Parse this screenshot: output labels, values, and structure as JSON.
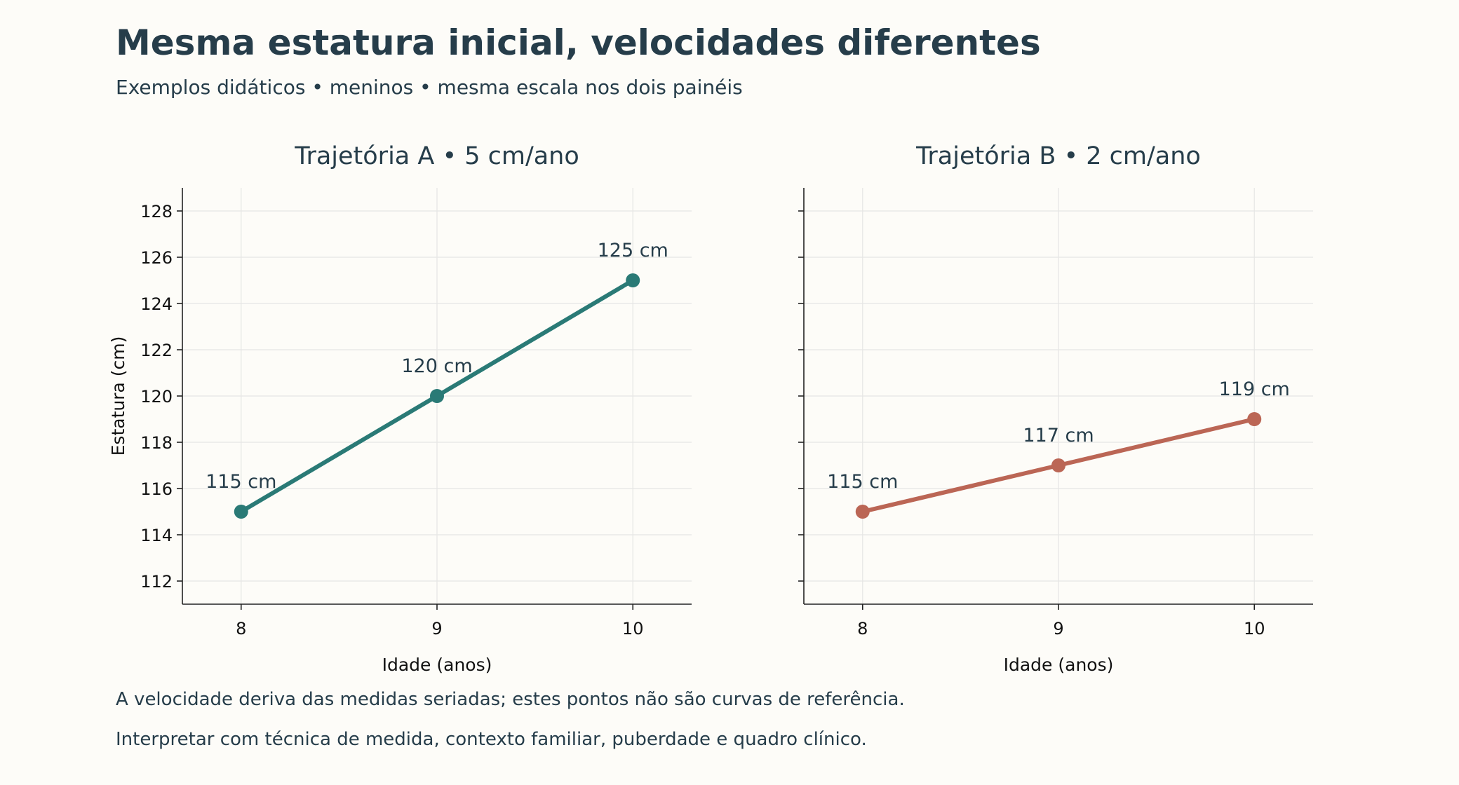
{
  "header": {
    "title": "Mesma estatura inicial, velocidades diferentes",
    "subtitle": "Exemplos didáticos • meninos • mesma escala nos dois painéis"
  },
  "notes": [
    "A velocidade deriva das medidas seriadas; estes pontos não são curvas de referência.",
    "Interpretar com técnica de medida, contexto familiar, puberdade e quadro clínico."
  ],
  "chart_data": [
    {
      "type": "line",
      "title": "Trajetória A • 5 cm/ano",
      "xlabel": "Idade (anos)",
      "ylabel": "Estatura (cm)",
      "x": [
        8,
        9,
        10
      ],
      "values": [
        115,
        120,
        125
      ],
      "point_labels": [
        "115 cm",
        "120 cm",
        "125 cm"
      ],
      "xticks": [
        8,
        9,
        10
      ],
      "yticks": [
        112,
        114,
        116,
        118,
        120,
        122,
        124,
        126,
        128
      ],
      "xlim": [
        7.7,
        10.3
      ],
      "ylim": [
        111,
        129
      ],
      "grid": true,
      "color": "#2a7a76"
    },
    {
      "type": "line",
      "title": "Trajetória B • 2 cm/ano",
      "xlabel": "Idade (anos)",
      "ylabel": "",
      "x": [
        8,
        9,
        10
      ],
      "values": [
        115,
        117,
        119
      ],
      "point_labels": [
        "115 cm",
        "117 cm",
        "119 cm"
      ],
      "xticks": [
        8,
        9,
        10
      ],
      "yticks": [
        112,
        114,
        116,
        118,
        120,
        122,
        124,
        126,
        128
      ],
      "show_ytick_labels": false,
      "xlim": [
        7.7,
        10.3
      ],
      "ylim": [
        111,
        129
      ],
      "grid": true,
      "color": "#bb6655"
    }
  ]
}
